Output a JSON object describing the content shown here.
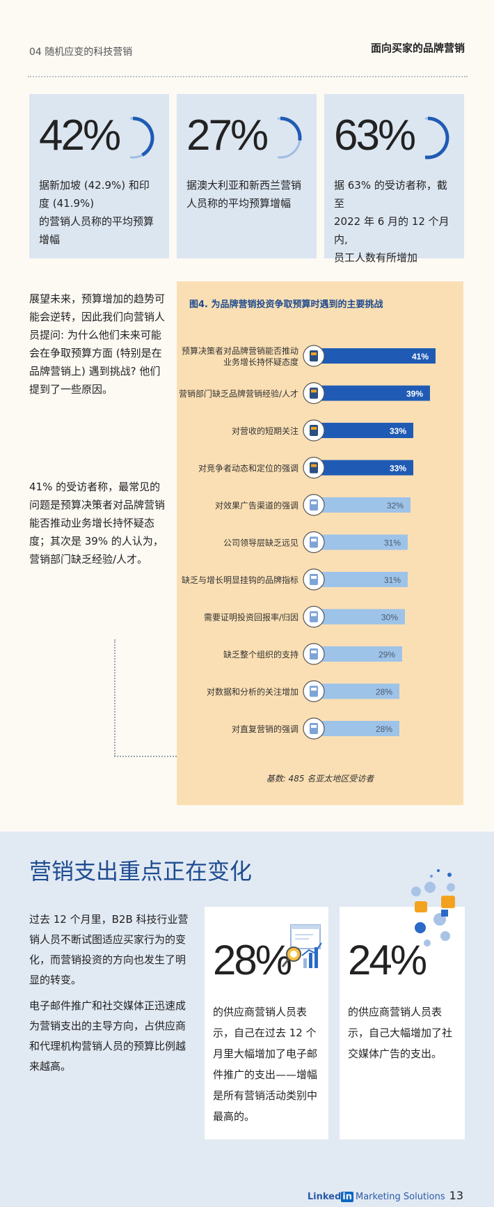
{
  "header": {
    "section": "04 随机应变的科技营销",
    "title": "面向买家的品牌营销"
  },
  "stats": [
    {
      "value": "42%",
      "desc_lines": [
        "据新加坡 (42.9%) 和印度 (41.9%)",
        "的营销人员称的平均预算增幅"
      ],
      "ring_fraction": 0.42
    },
    {
      "value": "27%",
      "desc_lines": [
        "据澳大利亚和新西兰营销",
        "人员称的平均预算增幅"
      ],
      "ring_fraction": 0.27
    },
    {
      "value": "63%",
      "desc_lines": [
        "据 63% 的受访者称，截至",
        "2022 年 6 月的 12 个月内,",
        "员工人数有所增加"
      ],
      "ring_fraction": 0.63
    }
  ],
  "left_text": {
    "para1": "展望未来，预算增加的趋势可能会逆转，因此我们向营销人员提问: 为什么他们未来可能会在争取预算方面 (特别是在品牌营销上) 遇到挑战? 他们提到了一些原因。",
    "para2": "41% 的受访者称，最常见的问题是预算决策者对品牌营销能否推动业务增长持怀疑态度；其次是 39% 的人认为，营销部门缺乏经验/人才。"
  },
  "chart_data": {
    "type": "bar",
    "title": "图4. 为品牌营销投资争取预算时遇到的主要挑战",
    "footnote": "基数: 485 名亚太地区受访者",
    "orientation": "horizontal",
    "categories": [
      [
        "预算决策者对品牌营销能否推动",
        "业务增长持怀疑态度"
      ],
      [
        "营销部门缺乏品牌营销经验/人才"
      ],
      [
        "对营收的短期关注"
      ],
      [
        "对竞争者动态和定位的强调"
      ],
      [
        "对效果广告渠道的强调"
      ],
      [
        "公司领导层缺乏远见"
      ],
      [
        "缺乏与增长明显挂钩的品牌指标"
      ],
      [
        "需要证明投资回报率/归因"
      ],
      [
        "缺乏整个组织的支持"
      ],
      [
        "对数据和分析的关注增加"
      ],
      [
        "对直复营销的强调"
      ]
    ],
    "values": [
      41,
      39,
      33,
      33,
      32,
      31,
      31,
      30,
      29,
      28,
      28
    ],
    "labels": [
      "41%",
      "39%",
      "33%",
      "33%",
      "32%",
      "31%",
      "31%",
      "30%",
      "29%",
      "28%",
      "28%"
    ],
    "highlighted": [
      true,
      true,
      true,
      true,
      false,
      false,
      false,
      false,
      false,
      false,
      false
    ],
    "icons": [
      "calculator-icon",
      "gear-people-icon",
      "money-bag-icon",
      "competitor-people-icon",
      "pie-chart-icon",
      "glasses-icon",
      "dashboard-icon",
      "clipboard-icon",
      "document-icon",
      "bar-chart-icon",
      "megaphone-icon"
    ],
    "colors": {
      "highlight": "#1f5bb4",
      "normal": "#9ec3e8",
      "background": "#fbdfb4"
    }
  },
  "bottom": {
    "title": "营销支出重点正在变化",
    "para1": "过去 12 个月里，B2B 科技行业营销人员不断试图适应买家行为的变化，而营销投资的方向也发生了明显的转变。",
    "para2": "电子邮件推广和社交媒体正迅速成为营销支出的主导方向，占供应商和代理机构营销人员的预算比例越来越高。",
    "cards": [
      {
        "value": "28%",
        "desc": "的供应商营销人员表示，自己在过去 12 个月里大幅增加了电子邮件推广的支出——增幅是所有营销活动类别中最高的。",
        "icon": "email-analytics-icon"
      },
      {
        "value": "24%",
        "desc": "的供应商营销人员表示，自己大幅增加了社交媒体广告的支出。",
        "icon": "social-media-icon"
      }
    ]
  },
  "footer": {
    "brand_a": "Linked",
    "brand_b": "in",
    "brand_c": "Marketing Solutions",
    "page": "13"
  }
}
